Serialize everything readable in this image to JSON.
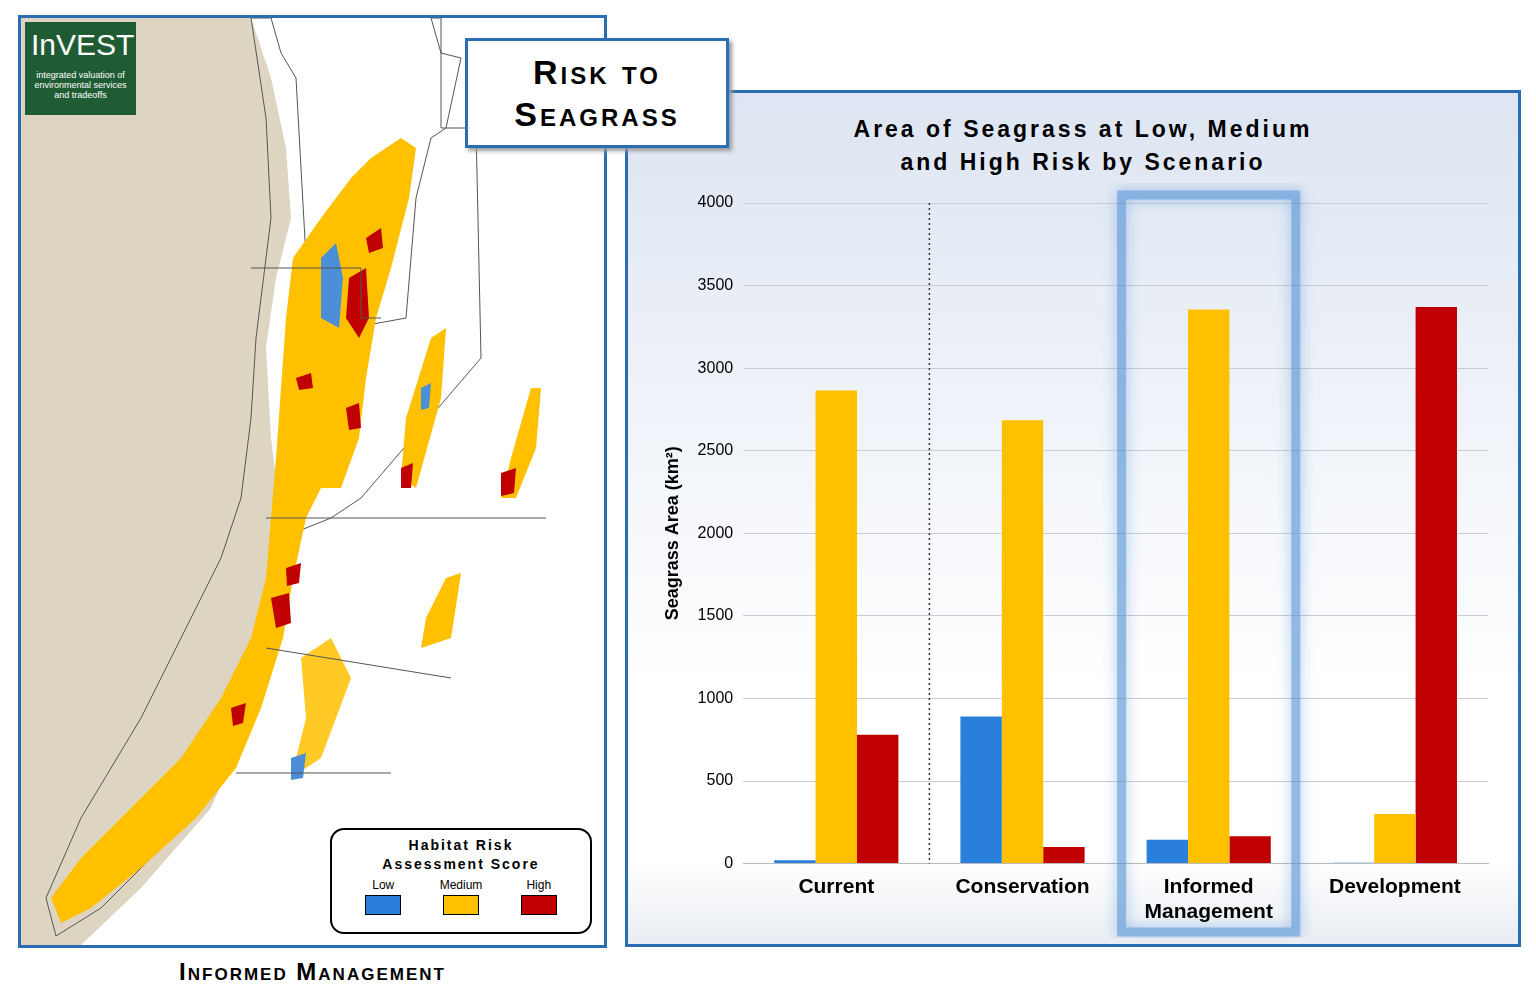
{
  "header": {
    "title": "Risk to Seagrass"
  },
  "map": {
    "logo": {
      "title": "InVEST",
      "subtitle": "integrated valuation of environmental services and tradeoffs"
    },
    "legend_title": "Habitat Risk Assessment Score",
    "caption": "Informed Management"
  },
  "chart_data": {
    "type": "bar",
    "title": "Area of Seagrass at Low, Medium and High Risk by Scenario",
    "y_label": "Seagrass Area (km²)",
    "categories": [
      "Current",
      "Conservation",
      "Informed Management",
      "Development"
    ],
    "series": [
      {
        "name": "Low",
        "color": "#2a7fdb",
        "values": [
          20,
          890,
          145,
          5
        ]
      },
      {
        "name": "Medium",
        "color": "#ffc000",
        "values": [
          2865,
          2685,
          3355,
          300
        ]
      },
      {
        "name": "High",
        "color": "#c00000",
        "values": [
          780,
          100,
          165,
          3370
        ]
      }
    ],
    "ylim": [
      0,
      4000
    ],
    "yticks": [
      0,
      500,
      1000,
      1500,
      2000,
      2500,
      3000,
      3500,
      4000
    ],
    "grid": true
  }
}
